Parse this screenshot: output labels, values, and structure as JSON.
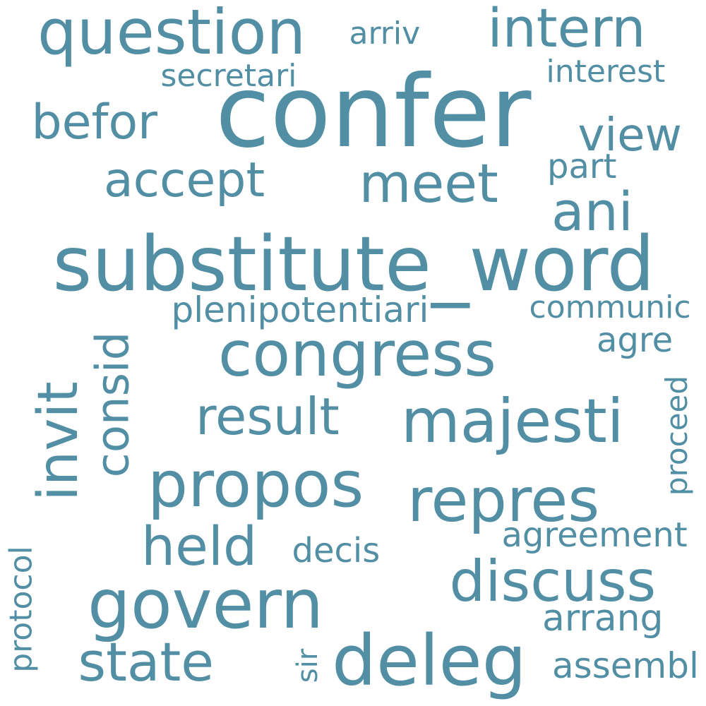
{
  "colors": {
    "background": "#ffffff",
    "word": "#528fa4"
  },
  "words": {
    "confer": "confer",
    "substitute_word": "substitute_word",
    "question": "question",
    "intern": "intern",
    "arriv": "arriv",
    "secretari": "secretari",
    "interest": "interest",
    "befor": "befor",
    "view": "view",
    "accept": "accept",
    "meet": "meet",
    "part": "part",
    "ani": "ani",
    "plenipotentiari": "plenipotentiari",
    "communic": "communic",
    "congress": "congress",
    "consid": "consid",
    "invit": "invit",
    "agre": "agre",
    "result": "result",
    "majesti": "majesti",
    "proceed": "proceed",
    "propos": "propos",
    "repres": "repres",
    "held": "held",
    "agreement": "agreement",
    "decis": "decis",
    "protocol": "protocol",
    "discuss": "discuss",
    "govern": "govern",
    "arrang": "arrang",
    "state": "state",
    "deleg": "deleg",
    "sir": "sir",
    "assembl": "assembl"
  }
}
